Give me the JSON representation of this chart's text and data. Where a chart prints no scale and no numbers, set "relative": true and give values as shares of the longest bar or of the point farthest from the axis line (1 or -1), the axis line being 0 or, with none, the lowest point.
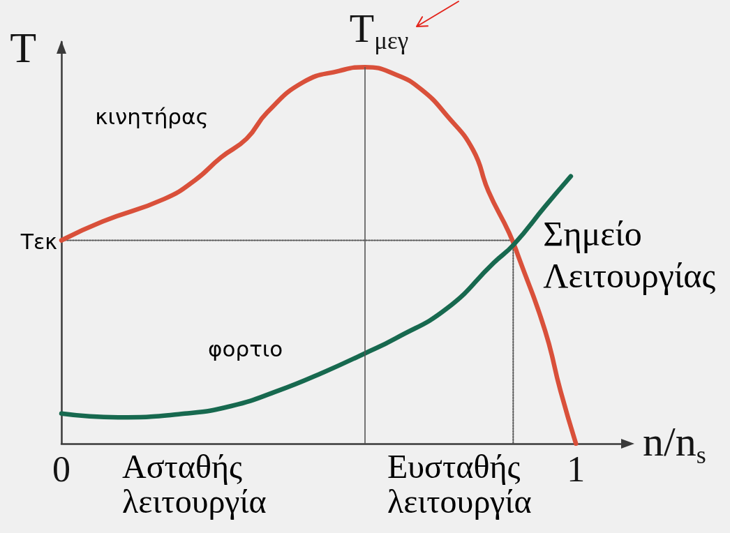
{
  "chart_data": {
    "type": "line",
    "relative": true,
    "ylabel": "T",
    "xlabel": "n/n$_{s}$",
    "xlim": [
      0,
      1.1
    ],
    "xticks": [
      0,
      1
    ],
    "marker": "none",
    "line_style": "solid",
    "grid": false,
    "legend": false,
    "series": [
      {
        "name": "κινητήρας",
        "color": "#d9503a",
        "x": [
          0,
          0.08,
          0.2,
          0.26,
          0.31,
          0.36,
          0.4,
          0.47,
          0.54,
          0.59,
          0.65,
          0.7,
          0.75,
          0.8,
          0.83,
          0.87,
          0.89,
          0.94,
          0.97,
          1
        ],
        "values": [
          0.54,
          0.59,
          0.65,
          0.7,
          0.76,
          0.81,
          0.88,
          0.96,
          0.99,
          1,
          0.98,
          0.94,
          0.87,
          0.78,
          0.67,
          0.56,
          0.49,
          0.3,
          0.14,
          0
        ]
      },
      {
        "name": "φορτιο",
        "color": "#17694f",
        "x": [
          0,
          0.11,
          0.24,
          0.33,
          0.42,
          0.51,
          0.59,
          0.65,
          0.75,
          0.84,
          0.88,
          0.94,
          0.99
        ],
        "values": [
          0.08,
          0.07,
          0.08,
          0.1,
          0.14,
          0.19,
          0.24,
          0.28,
          0.36,
          0.48,
          0.53,
          0.63,
          0.71
        ]
      },
      {
        "color": "#555555",
        "line_style": "dotted",
        "x": [
          0,
          0.878,
          0.878
        ],
        "values": [
          0.54,
          0.54,
          0
        ]
      }
    ],
    "ref_lines": [
      {
        "axis": "x",
        "value": 0.59,
        "label": "T$_{μεγ}$",
        "color": "#555555",
        "line_style": "solid"
      }
    ],
    "annotations": [
      {
        "text": "Tεκ",
        "x": 0,
        "y": 0.54
      },
      {
        "text": "Σημείο Λειτουργίας",
        "x": 0.878,
        "y": 0.54
      },
      "Ασταθής λειτουργία",
      "Ευσταθής λειτουργία"
    ]
  }
}
